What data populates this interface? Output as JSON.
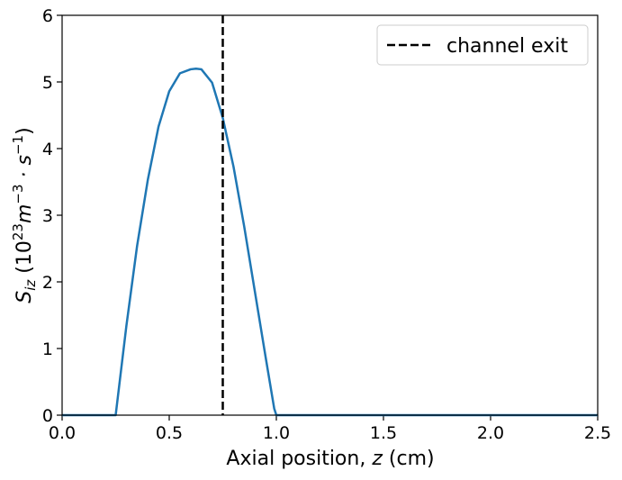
{
  "chart_data": {
    "type": "line",
    "xlabel_text": "Axial position, ",
    "xlabel_var": "z",
    "xlabel_unit": " (cm)",
    "ylabel_var": "S",
    "ylabel_sub": "iz",
    "ylabel_rest1": " (10",
    "ylabel_exp1": "23",
    "ylabel_rest2": "m",
    "ylabel_exp2": "−3",
    "ylabel_rest3": " · s",
    "ylabel_exp3": "−1",
    "ylabel_rest4": ")",
    "xlim": [
      0,
      2.5
    ],
    "ylim": [
      0,
      6
    ],
    "xticks": [
      "0.0",
      "0.5",
      "1.0",
      "1.5",
      "2.0",
      "2.5"
    ],
    "yticks": [
      "0",
      "1",
      "2",
      "3",
      "4",
      "5",
      "6"
    ],
    "grid": false,
    "legend_position": "top-right",
    "series": [
      {
        "color": "#1f77b4",
        "x": [
          0.0,
          0.25,
          0.3,
          0.35,
          0.4,
          0.45,
          0.5,
          0.55,
          0.6,
          0.625,
          0.65,
          0.7,
          0.75,
          0.8,
          0.85,
          0.9,
          0.95,
          0.99,
          1.0,
          1.5,
          2.0,
          2.5
        ],
        "y": [
          0.0,
          0.0,
          1.34,
          2.54,
          3.53,
          4.33,
          4.86,
          5.13,
          5.19,
          5.2,
          5.19,
          4.99,
          4.46,
          3.73,
          2.83,
          1.85,
          0.87,
          0.1,
          0.0,
          0.0,
          0.0,
          0.0
        ]
      }
    ],
    "vlines": [
      {
        "name": "channel exit",
        "x": 0.75,
        "color": "#000000",
        "style": "dashed"
      }
    ]
  }
}
